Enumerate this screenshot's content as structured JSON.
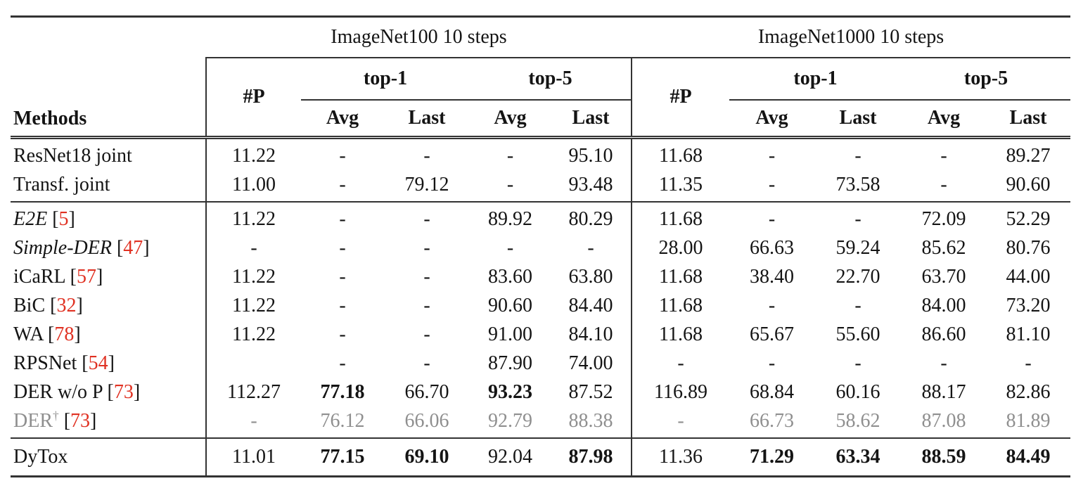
{
  "table": {
    "groups": [
      {
        "label": "ImageNet100 10 steps"
      },
      {
        "label": "ImageNet1000 10 steps"
      }
    ],
    "methods_label": "Methods",
    "param_label": "#P",
    "top1_label": "top-1",
    "top5_label": "top-5",
    "avg_label": "Avg",
    "last_label": "Last",
    "colors": {
      "citation_red": "#e03122",
      "muted_gray": "#8f8f8f",
      "rule_color": "#333333"
    },
    "sections": [
      {
        "rows": [
          {
            "method": {
              "name": "ResNet18 joint"
            },
            "cells": [
              "11.22",
              "-",
              "-",
              "-",
              "95.10",
              "11.68",
              "-",
              "-",
              "-",
              "89.27"
            ]
          },
          {
            "method": {
              "name": "Transf. joint"
            },
            "cells": [
              "11.00",
              "-",
              "79.12",
              "-",
              "93.48",
              "11.35",
              "-",
              "73.58",
              "-",
              "90.60"
            ]
          }
        ]
      },
      {
        "rows": [
          {
            "method": {
              "name": "E2E",
              "italic": true,
              "cite": "5"
            },
            "cells": [
              "11.22",
              "-",
              "-",
              "89.92",
              "80.29",
              "11.68",
              "-",
              "-",
              "72.09",
              "52.29"
            ]
          },
          {
            "method": {
              "name": "Simple-DER",
              "italic": true,
              "cite": "47"
            },
            "cells": [
              "-",
              "-",
              "-",
              "-",
              "-",
              "28.00",
              "66.63",
              "59.24",
              "85.62",
              "80.76"
            ]
          },
          {
            "method": {
              "name": "iCaRL",
              "cite": "57"
            },
            "cells": [
              "11.22",
              "-",
              "-",
              "83.60",
              "63.80",
              "11.68",
              "38.40",
              "22.70",
              "63.70",
              "44.00"
            ]
          },
          {
            "method": {
              "name": "BiC",
              "cite": "32"
            },
            "cells": [
              "11.22",
              "-",
              "-",
              "90.60",
              "84.40",
              "11.68",
              "-",
              "-",
              "84.00",
              "73.20"
            ]
          },
          {
            "method": {
              "name": "WA",
              "cite": "78"
            },
            "cells": [
              "11.22",
              "-",
              "-",
              "91.00",
              "84.10",
              "11.68",
              "65.67",
              "55.60",
              "86.60",
              "81.10"
            ]
          },
          {
            "method": {
              "name": "RPSNet",
              "cite": "54"
            },
            "cells": [
              "",
              "-",
              "-",
              "87.90",
              "74.00",
              "-",
              "-",
              "-",
              "-",
              "-"
            ]
          },
          {
            "method": {
              "name": "DER w/o P",
              "cite": "73"
            },
            "cells": [
              "112.27",
              {
                "t": "77.18",
                "b": true
              },
              "66.70",
              {
                "t": "93.23",
                "b": true
              },
              "87.52",
              "116.89",
              "68.84",
              "60.16",
              "88.17",
              "82.86"
            ]
          },
          {
            "method": {
              "name": "DER",
              "sup": "†",
              "cite": "73"
            },
            "muted": true,
            "cells": [
              "-",
              "76.12",
              "66.06",
              "92.79",
              "88.38",
              "-",
              "66.73",
              "58.62",
              "87.08",
              "81.89"
            ]
          }
        ]
      },
      {
        "rows": [
          {
            "method": {
              "name": "DyTox"
            },
            "cells": [
              "11.01",
              {
                "t": "77.15",
                "b": true
              },
              {
                "t": "69.10",
                "b": true
              },
              "92.04",
              {
                "t": "87.98",
                "b": true
              },
              "11.36",
              {
                "t": "71.29",
                "b": true
              },
              {
                "t": "63.34",
                "b": true
              },
              {
                "t": "88.59",
                "b": true
              },
              {
                "t": "84.49",
                "b": true
              }
            ]
          }
        ]
      }
    ]
  }
}
